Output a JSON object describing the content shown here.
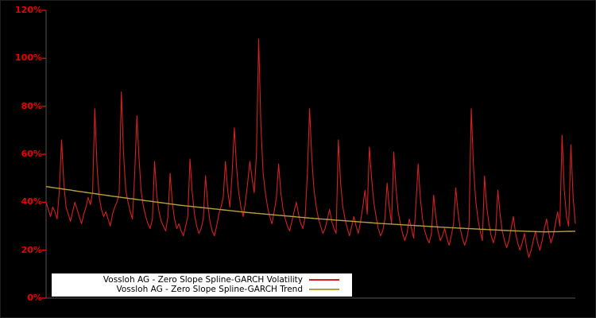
{
  "figure": {
    "background": "#000000",
    "axis_color": "#555555",
    "tick_color": "#ee0000",
    "tick_label_color": "#ee0000"
  },
  "legend": {
    "background": "#ffffff",
    "entries": [
      {
        "label": "Vossloh AG - Zero Slope Spline-GARCH Volatility",
        "color": "#d42020"
      },
      {
        "label": "Vossloh AG - Zero Slope Spline-GARCH Trend",
        "color": "#b8a038"
      }
    ]
  },
  "chart_data": {
    "type": "line",
    "title": "",
    "xlabel": "",
    "ylabel": "",
    "ylim": [
      0,
      120
    ],
    "grid": false,
    "legend_position": "bottom-left",
    "yticks": [
      {
        "label": "0%",
        "value": 0
      },
      {
        "label": "20%",
        "value": 20
      },
      {
        "label": "40%",
        "value": 40
      },
      {
        "label": "60%",
        "value": 60
      },
      {
        "label": "80%",
        "value": 80
      },
      {
        "label": "100%",
        "value": 100
      },
      {
        "label": "120%",
        "value": 120
      }
    ],
    "series": [
      {
        "name": "Vossloh AG - Zero Slope Spline-GARCH Volatility",
        "color": "#d42020",
        "unit": "%",
        "values": [
          40,
          37,
          34,
          38,
          36,
          33,
          45,
          66,
          48,
          38,
          35,
          32,
          36,
          40,
          37,
          34,
          31,
          35,
          38,
          42,
          39,
          44,
          79,
          55,
          42,
          37,
          34,
          36,
          33,
          30,
          35,
          38,
          40,
          44,
          86,
          60,
          45,
          40,
          36,
          33,
          52,
          76,
          58,
          44,
          38,
          34,
          31,
          29,
          33,
          57,
          43,
          36,
          32,
          30,
          28,
          34,
          52,
          40,
          33,
          29,
          31,
          28,
          26,
          30,
          34,
          58,
          44,
          35,
          30,
          27,
          29,
          33,
          51,
          39,
          32,
          28,
          26,
          30,
          35,
          38,
          42,
          57,
          45,
          38,
          52,
          71,
          55,
          44,
          38,
          34,
          40,
          48,
          57,
          50,
          44,
          60,
          108,
          72,
          52,
          44,
          38,
          34,
          31,
          36,
          42,
          56,
          44,
          37,
          33,
          30,
          28,
          32,
          36,
          40,
          35,
          31,
          29,
          34,
          52,
          79,
          58,
          45,
          38,
          33,
          30,
          27,
          29,
          33,
          37,
          32,
          29,
          27,
          66,
          48,
          38,
          33,
          29,
          26,
          30,
          34,
          30,
          27,
          32,
          38,
          45,
          35,
          63,
          50,
          40,
          34,
          29,
          26,
          28,
          33,
          48,
          38,
          31,
          61,
          46,
          36,
          31,
          27,
          24,
          27,
          33,
          29,
          25,
          39,
          56,
          42,
          33,
          28,
          25,
          23,
          27,
          43,
          34,
          28,
          24,
          26,
          29,
          25,
          22,
          26,
          31,
          46,
          36,
          29,
          25,
          22,
          25,
          30,
          79,
          55,
          41,
          33,
          28,
          24,
          51,
          38,
          31,
          26,
          23,
          27,
          45,
          35,
          28,
          24,
          21,
          24,
          29,
          34,
          27,
          23,
          20,
          23,
          27,
          21,
          17,
          20,
          24,
          28,
          23,
          20,
          24,
          29,
          33,
          27,
          23,
          26,
          31,
          36,
          30,
          68,
          45,
          34,
          30,
          64,
          42,
          31
        ]
      },
      {
        "name": "Vossloh AG - Zero Slope Spline-GARCH Trend",
        "color": "#b8a038",
        "unit": "%",
        "anchors": [
          [
            0,
            46.5
          ],
          [
            30,
            42.5
          ],
          [
            60,
            38.8
          ],
          [
            90,
            35.8
          ],
          [
            120,
            33.3
          ],
          [
            150,
            31.2
          ],
          [
            180,
            29.5
          ],
          [
            210,
            28.1
          ],
          [
            225,
            27.6
          ],
          [
            239,
            27.9
          ]
        ]
      }
    ]
  }
}
